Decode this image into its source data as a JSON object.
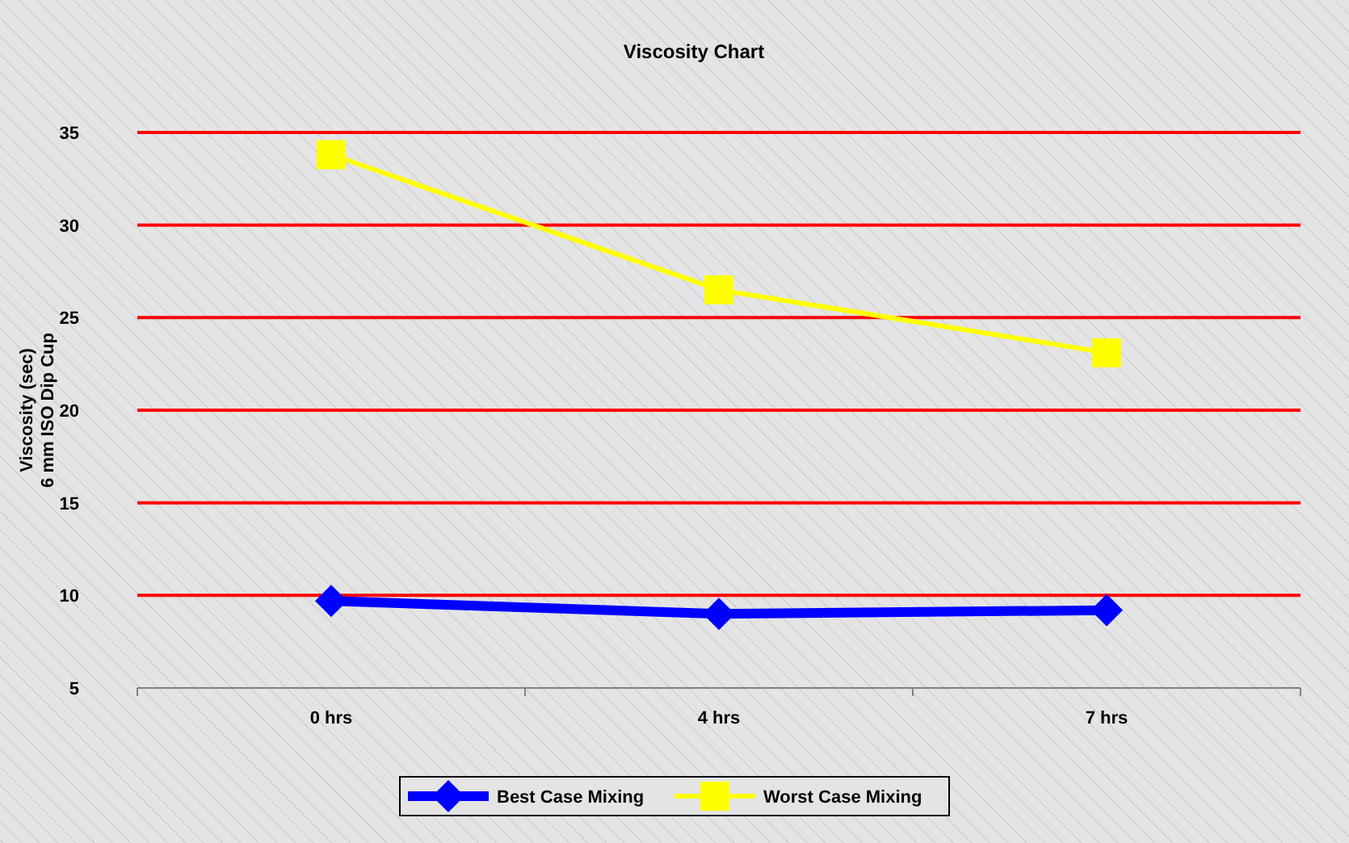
{
  "chart_data": {
    "type": "line",
    "title": "Viscosity Chart",
    "ylabel": "Viscosity (sec)\n6 mm ISO Dip Cup",
    "categories": [
      "0 hrs",
      "4 hrs",
      "7 hrs"
    ],
    "series": [
      {
        "name": "Best Case Mixing",
        "color": "#0000ff",
        "values": [
          9.7,
          9.0,
          9.2
        ],
        "marker": "diamond"
      },
      {
        "name": "Worst Case Mixing",
        "color": "#ffff00",
        "values": [
          33.8,
          26.5,
          23.1
        ],
        "marker": "square"
      }
    ],
    "ylim": [
      5,
      35
    ],
    "yticks": [
      5,
      10,
      15,
      20,
      25,
      30,
      35
    ],
    "grid": "y",
    "legend": "bottom"
  }
}
